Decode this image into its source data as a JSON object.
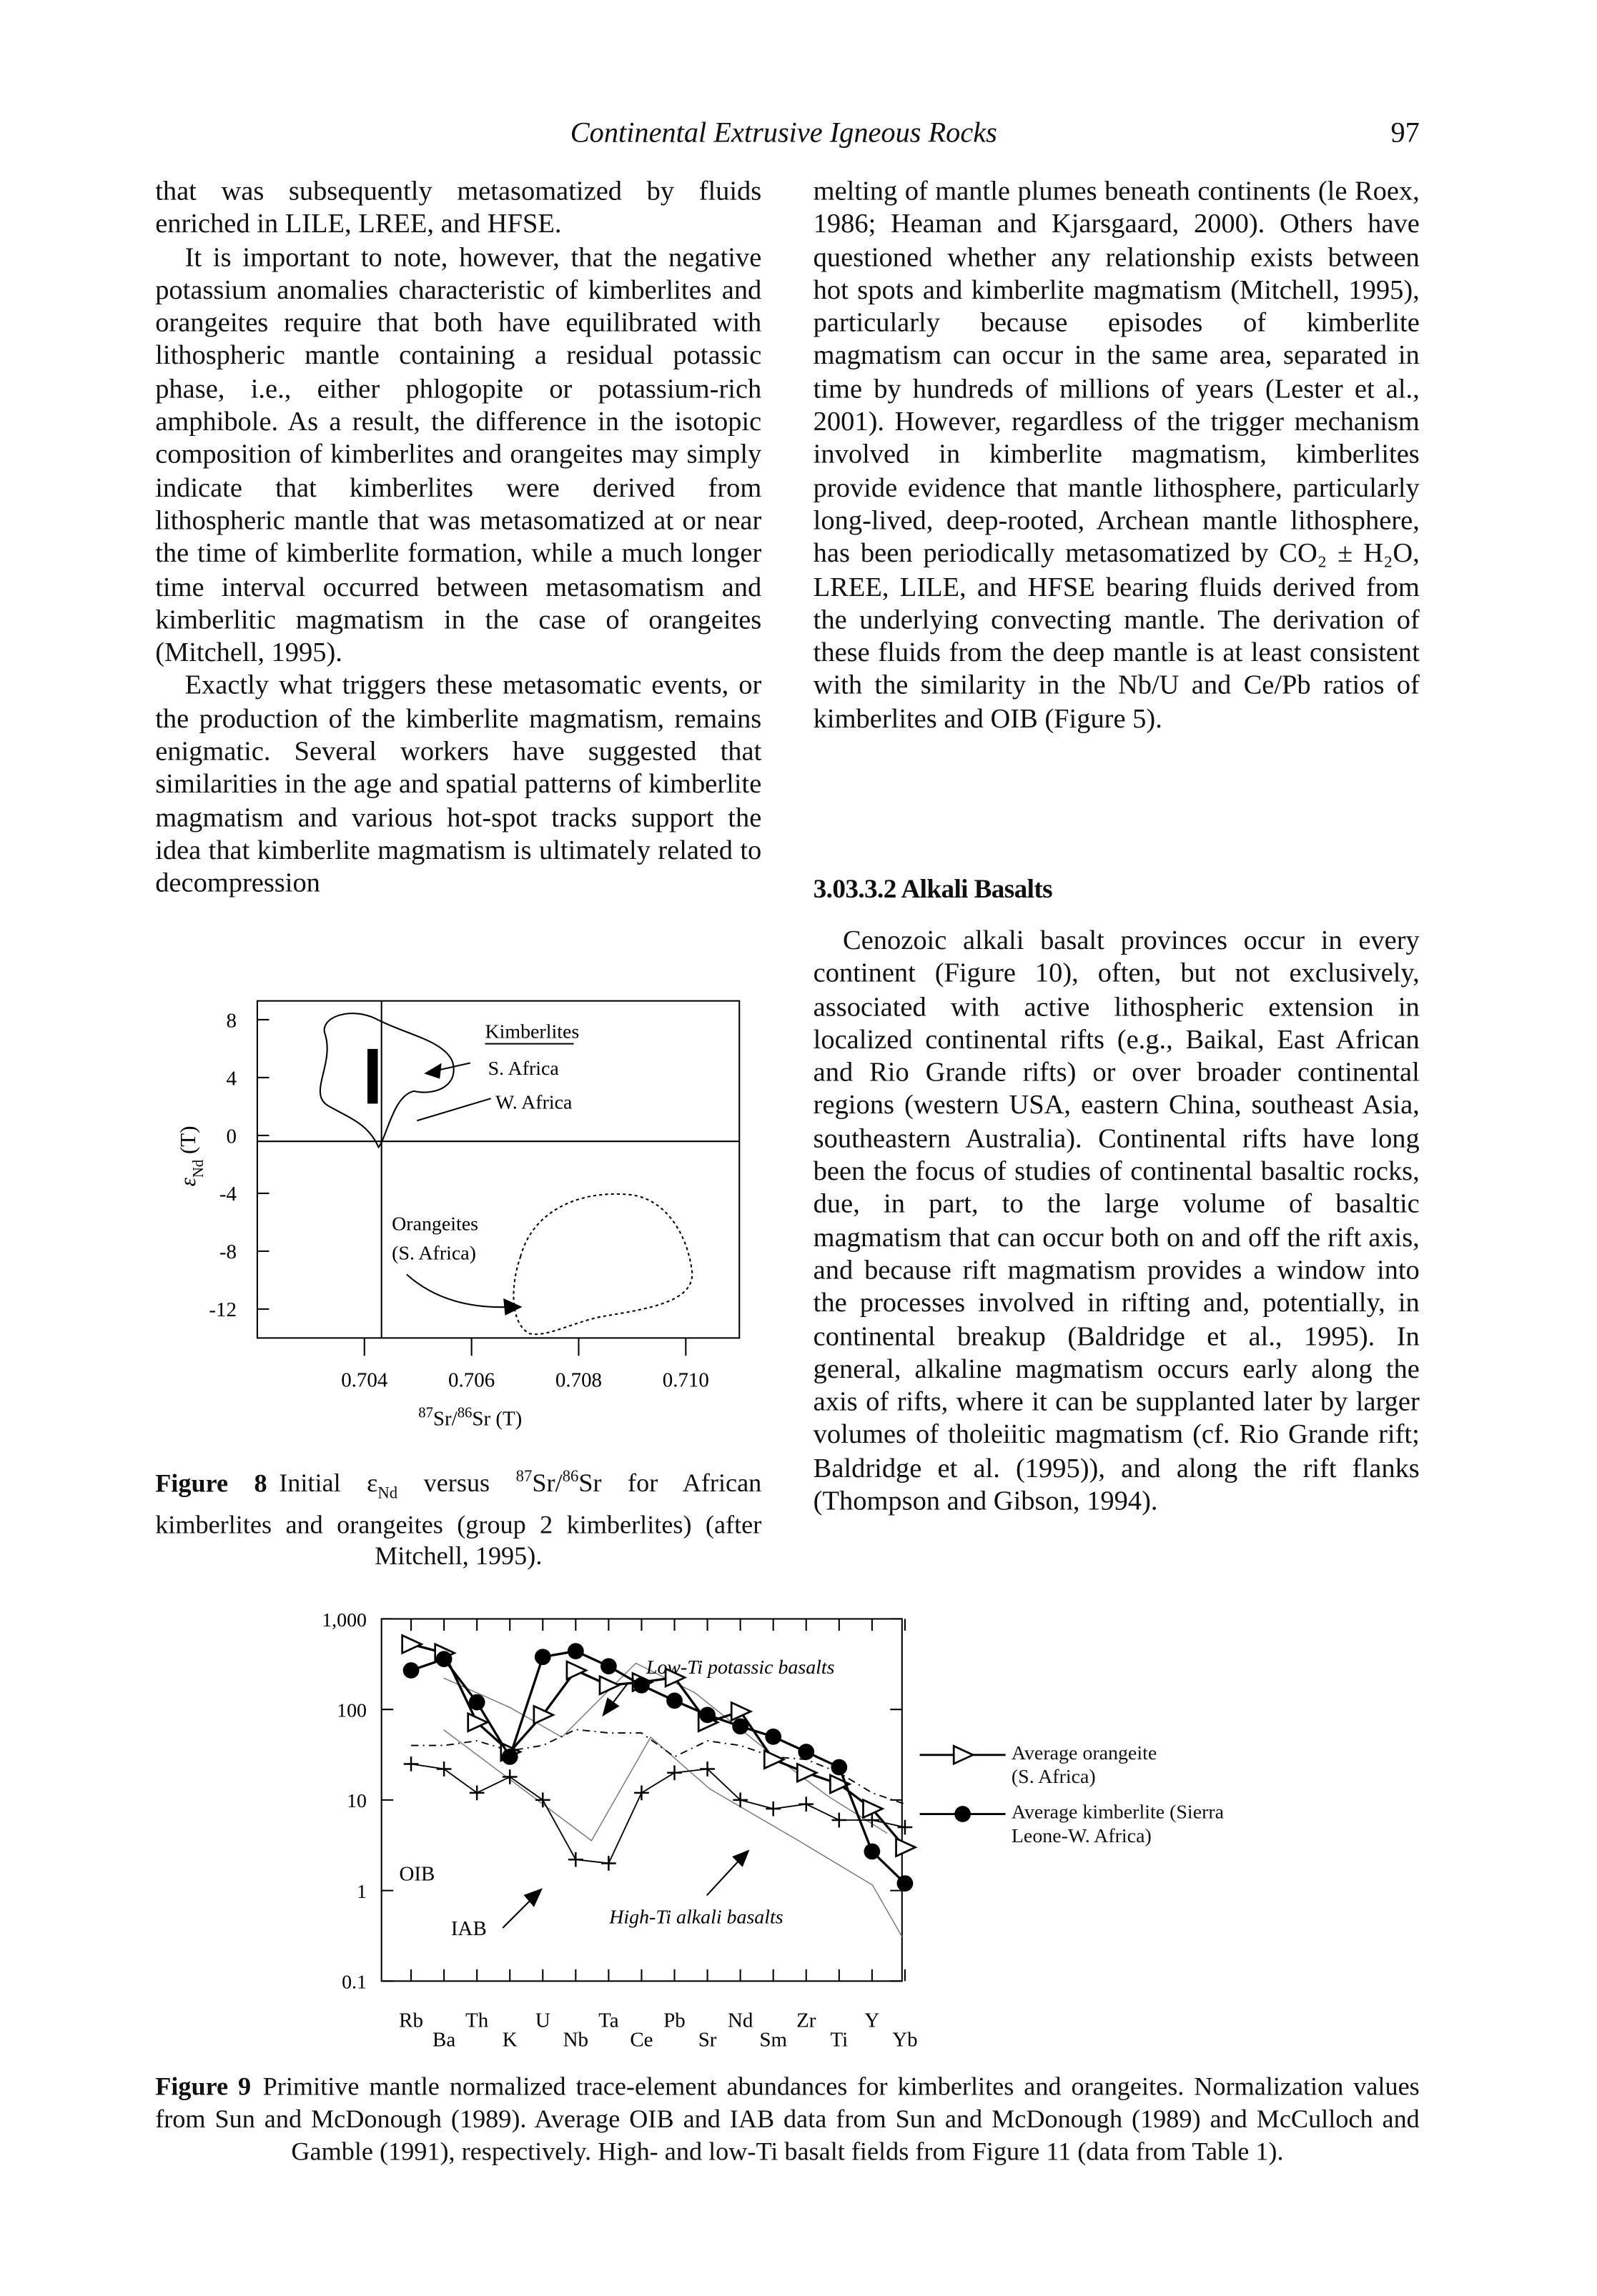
{
  "header": {
    "running_title": "Continental Extrusive Igneous Rocks",
    "page_number": "97"
  },
  "left_column": {
    "paragraphs": [
      "that was subsequently metasomatized by fluids enriched in LILE, LREE, and HFSE.",
      "It is important to note, however, that the negative potassium anomalies characteristic of kimberlites and orangeites require that both have equilibrated with lithospheric mantle containing a residual potassic phase, i.e., either phlogopite or potassium-rich amphibole. As a result, the difference in the isotopic composition of kimberlites and orangeites may simply indicate that kimberlites were derived from lithospheric mantle that was metasomatized at or near the time of kimberlite formation, while a much longer time interval occurred between metasomatism and kimberlitic magmatism in the case of orangeites (Mitchell, 1995).",
      "Exactly what triggers these metasomatic events, or the production of the kimberlite magmatism, remains enigmatic. Several workers have suggested that similarities in the age and spatial patterns of kimberlite magmatism and various hot-spot tracks support the idea that kimberlite magmatism is ultimately related to decompression"
    ]
  },
  "right_column": {
    "paragraphs_top": [
      "melting of mantle plumes beneath continents (le Roex, 1986; Heaman and Kjarsgaard, 2000). Others have questioned whether any relationship exists between hot spots and kimberlite magmatism (Mitchell, 1995), particularly because episodes of kimberlite magmatism can occur in the same area, separated in time by hundreds of millions of years (Lester et al., 2001). However, regardless of the trigger mechanism involved in kimberlite magmatism, kimberlites provide evidence that mantle lithosphere, particularly long-lived, deep-rooted, Archean mantle lithosphere, has been periodically metasomatized by CO₂ ± H₂O, LREE, LILE, and HFSE bearing fluids derived from the underlying convecting mantle. The derivation of these fluids from the deep mantle is at least consistent with the similarity in the Nb/U and Ce/Pb ratios of kimberlites and OIB (Figure 5)."
    ],
    "section_heading": "3.03.3.2 Alkali Basalts",
    "paragraphs_bottom": [
      "Cenozoic alkali basalt provinces occur in every continent (Figure 10), often, but not exclusively, associated with active lithospheric extension in localized continental rifts (e.g., Baikal, East African and Rio Grande rifts) or over broader continental regions (western USA, eastern China, southeast Asia, southeastern Australia). Continental rifts have long been the focus of studies of continental basaltic rocks, due, in part, to the large volume of basaltic magmatism that can occur both on and off the rift axis, and because rift magmatism provides a window into the processes involved in rifting and, potentially, in continental breakup (Baldridge et al., 1995). In general, alkaline magmatism occurs early along the axis of rifts, where it can be supplanted later by larger volumes of tholeiitic magmatism (cf. Rio Grande rift; Baldridge et al. (1995)), and along the rift flanks (Thompson and Gibson, 1994)."
    ]
  },
  "chart_data": [
    {
      "type": "field",
      "xlim": [
        0.702,
        0.711
      ],
      "ylim": [
        -14,
        9.3
      ],
      "xticks": [
        0.704,
        0.706,
        0.708,
        {
          "value": 0.71,
          "label": "0.710"
        }
      ],
      "yticks": [
        8,
        4,
        0,
        -4,
        -8,
        -12
      ],
      "xlabel": [
        "87",
        "Sr/",
        "86",
        "Sr (T)"
      ],
      "ylabel": [
        "ε",
        "Nd",
        " (T)"
      ],
      "annotations": [
        "Kimberlites",
        "S. Africa",
        "W. Africa",
        "Orangeites",
        "(S. Africa)"
      ]
    },
    {
      "type": "line",
      "categories": [
        "Rb",
        "Ba",
        "Th",
        "K",
        "U",
        "Nb",
        "Ta",
        "Ce",
        "Pb",
        "Sr",
        "Nd",
        "Sm",
        "Zr",
        "Ti",
        "Y",
        "Yb"
      ],
      "ylim": [
        0.1,
        1000
      ],
      "log_scale": true,
      "yticks": [
        0.1,
        1,
        10,
        100,
        {
          "value": 1000,
          "label": "1,000"
        }
      ],
      "series": [
        {
          "name": "Average orangeite (S. Africa)",
          "marker": "triangle-open",
          "color": "#000000",
          "values": [
            525,
            420,
            72,
            34,
            87,
            270,
            185,
            200,
            225,
            72,
            95,
            28,
            20,
            15,
            8,
            3
          ]
        },
        {
          "name": "Average kimberlite (Sierra Leone-W. Africa)",
          "marker": "circle",
          "color": "#000000",
          "values": [
            270,
            360,
            120,
            30,
            380,
            440,
            300,
            185,
            125,
            87,
            65,
            50,
            34,
            23,
            2.7,
            1.2
          ]
        }
      ],
      "reference_series": [
        {
          "name": "OIB",
          "marker": "none",
          "dash": true,
          "color": "#000000",
          "values": [
            40,
            40,
            45,
            35,
            40,
            60,
            55,
            55,
            30,
            45,
            40,
            30,
            28,
            20,
            12,
            9
          ]
        },
        {
          "name": "IAB",
          "marker": "cross",
          "color": "#000000",
          "values": [
            25,
            22,
            12,
            18,
            10,
            2.2,
            2,
            12,
            20,
            22,
            10,
            8,
            9,
            6,
            6,
            5
          ]
        }
      ],
      "annotations": [
        "Low-Ti potassic basalts",
        "High-Ti alkali basalts"
      ]
    }
  ],
  "captions": [
    {
      "label": "Figure 8",
      "text": [
        "Initial ε",
        "Nd",
        " versus ",
        "87",
        "Sr/",
        "86",
        "Sr for African kimberlites and orangeites (group 2 kimberlites) (after Mitchell, 1995)."
      ]
    },
    {
      "label": "Figure 9",
      "text": [
        "Primitive mantle normalized trace-element abundances for kimberlites and orangeites. Normalization values from Sun and McDonough (1989). Average OIB and IAB data from Sun and McDonough (1989) and McCulloch and Gamble (1991), respectively. High- and low-Ti basalt fields from Figure 11 (data from Table 1)."
      ]
    }
  ]
}
